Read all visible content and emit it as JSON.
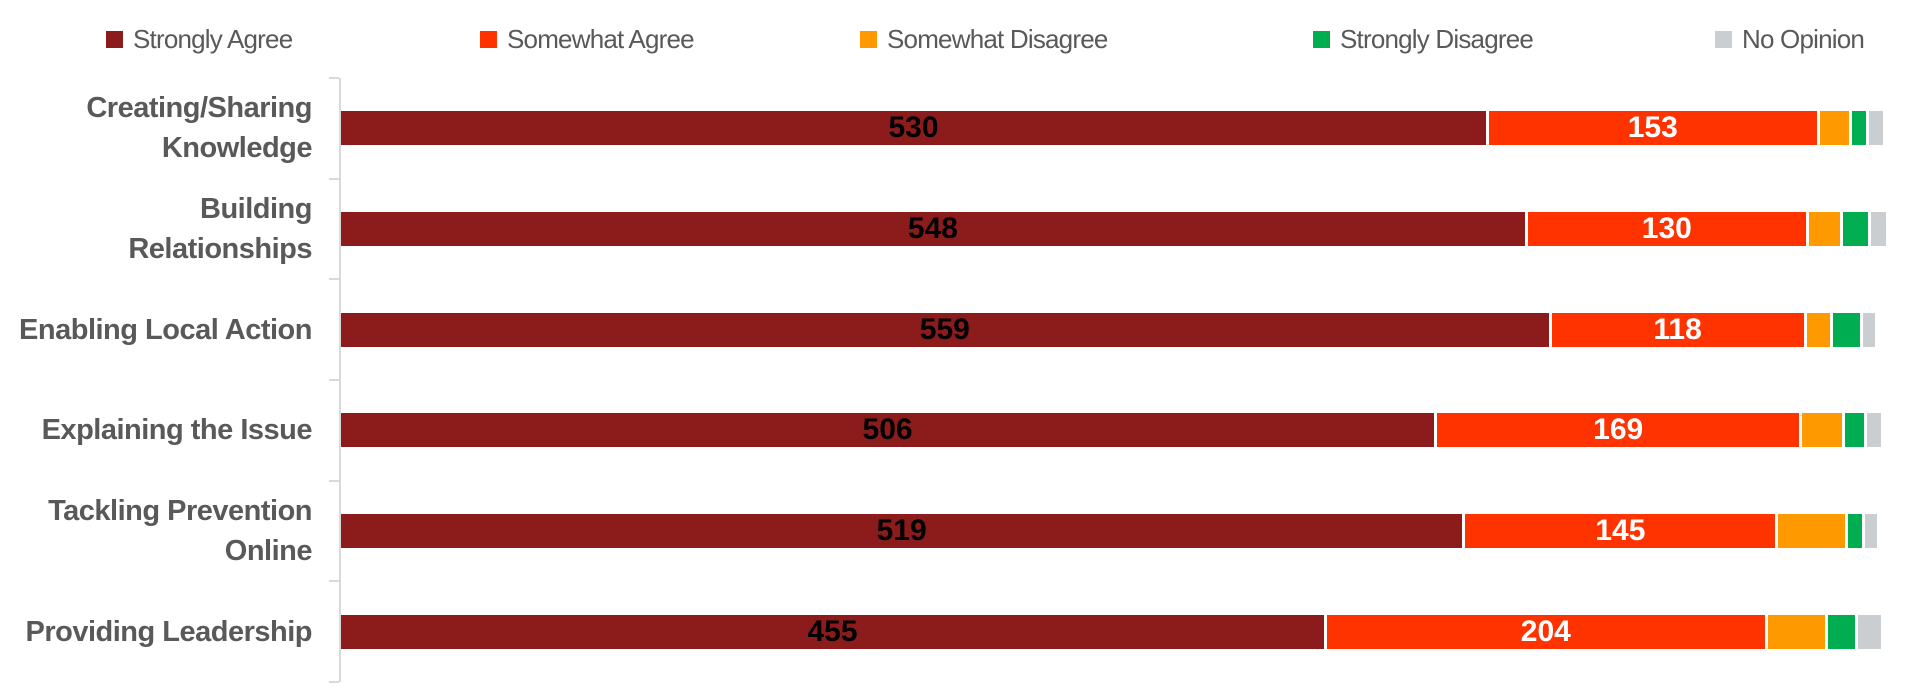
{
  "chart_data": {
    "type": "bar",
    "orientation": "horizontal",
    "stacked": true,
    "title": "",
    "xlabel": "",
    "ylabel": "",
    "grid": false,
    "legend_position": "top",
    "axis_max": 717,
    "axis_color": "#D9D9D9",
    "category_label_color": "#595959",
    "legend_text_color": "#595959",
    "categories": [
      "Creating/Sharing\nKnowledge",
      "Building\nRelationships",
      "Enabling Local Action",
      "Explaining the Issue",
      "Tackling Prevention\nOnline",
      "Providing Leadership"
    ],
    "series": [
      {
        "name": "Strongly Agree",
        "color": "#8C1C1C",
        "labels_visible": true,
        "label_color": "#000000",
        "values": [
          530,
          548,
          559,
          506,
          519,
          455
        ]
      },
      {
        "name": "Somewhat Agree",
        "color": "#FF3300",
        "labels_visible": true,
        "label_color": "#FFFFFF",
        "values": [
          153,
          130,
          118,
          169,
          145,
          204
        ]
      },
      {
        "name": "Somewhat Disagree",
        "color": "#FF9900",
        "labels_visible": false,
        "label_color": "#000000",
        "values": [
          15,
          16,
          12,
          20,
          32,
          28
        ]
      },
      {
        "name": "Strongly Disagree",
        "color": "#00AD50",
        "labels_visible": false,
        "label_color": "#000000",
        "values": [
          8,
          13,
          14,
          10,
          8,
          14
        ]
      },
      {
        "name": "No Opinion",
        "color": "#CBCED0",
        "labels_visible": false,
        "label_color": "#000000",
        "values": [
          8,
          8,
          7,
          8,
          7,
          12
        ]
      }
    ]
  }
}
